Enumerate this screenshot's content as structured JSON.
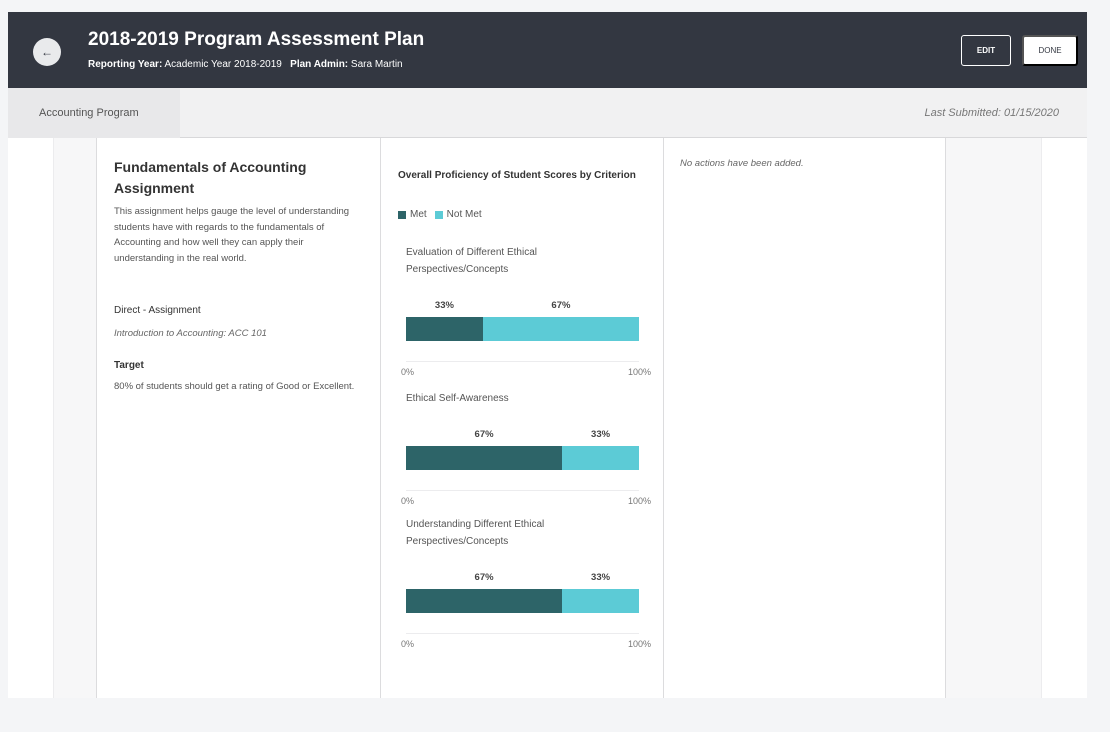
{
  "header": {
    "title": "2018-2019 Program Assessment Plan",
    "reporting_year_label": "Reporting Year:",
    "reporting_year_value": "Academic Year 2018-2019",
    "plan_admin_label": "Plan Admin:",
    "plan_admin_value": "Sara Martin",
    "edit_label": "EDIT",
    "done_label": "DONE",
    "back_icon": "arrow-left-icon"
  },
  "subbar": {
    "tab_label": "Accounting Program",
    "last_submitted": "Last Submitted: 01/15/2020"
  },
  "assignment": {
    "title": "Fundamentals of Accounting Assignment",
    "description": "This assignment helps gauge the level of understanding students have with regards to the fundamentals of Accounting and how well they can apply their understanding in the real world.",
    "type": "Direct - Assignment",
    "course": "Introduction to Accounting: ACC 101",
    "target_label": "Target",
    "target_text": "80% of students should get a rating of Good or Excellent."
  },
  "actions": {
    "empty_text": "No actions have been added."
  },
  "colors": {
    "met": "#2d6468",
    "not_met": "#5ccbd6",
    "header_bg": "#333741"
  },
  "chart_data": {
    "type": "bar",
    "orientation": "horizontal-stacked",
    "title": "Overall Proficiency of Student Scores by Criterion",
    "legend": [
      "Met",
      "Not Met"
    ],
    "legend_position": "top-left",
    "xlim": [
      0,
      100
    ],
    "tick_labels": [
      "0%",
      "100%"
    ],
    "categories": [
      "Evaluation of Different Ethical Perspectives/Concepts",
      "Ethical Self-Awareness",
      "Understanding Different Ethical Perspectives/Concepts"
    ],
    "series": [
      {
        "name": "Met",
        "values": [
          33,
          67,
          67
        ],
        "labels": [
          "33%",
          "67%",
          "67%"
        ]
      },
      {
        "name": "Not Met",
        "values": [
          67,
          33,
          33
        ],
        "labels": [
          "67%",
          "33%",
          "33%"
        ]
      }
    ]
  }
}
